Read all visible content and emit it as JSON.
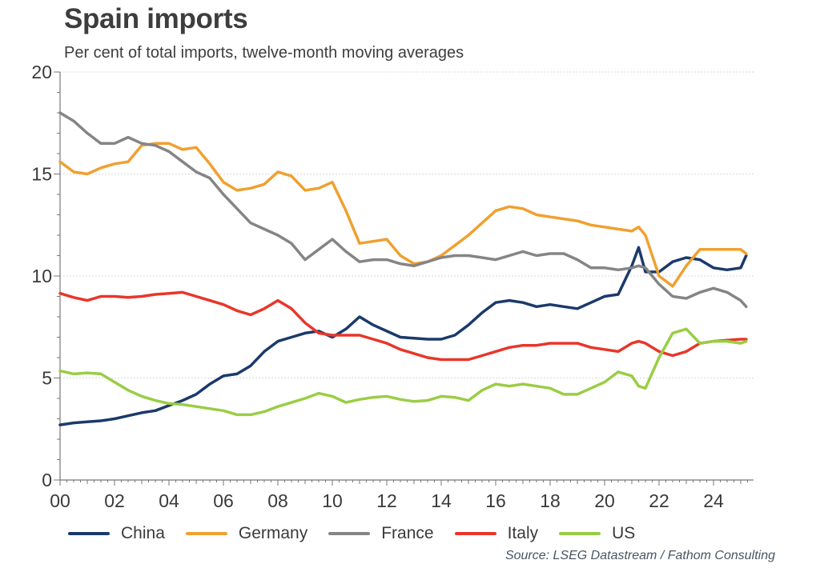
{
  "chart_data": {
    "type": "line",
    "title": "Spain imports",
    "subtitle": "Per cent of total imports, twelve-month moving averages",
    "xlabel": "",
    "ylabel": "",
    "ylim": [
      0,
      20
    ],
    "xlim": [
      2000,
      2025.5
    ],
    "yticks": [
      0,
      5,
      10,
      15,
      20
    ],
    "ytick_labels": [
      "0",
      "5",
      "10",
      "15",
      "20"
    ],
    "xticks": [
      2000,
      2002,
      2004,
      2006,
      2008,
      2010,
      2012,
      2014,
      2016,
      2018,
      2020,
      2022,
      2024
    ],
    "xtick_labels": [
      "00",
      "02",
      "04",
      "06",
      "08",
      "10",
      "12",
      "14",
      "16",
      "18",
      "20",
      "22",
      "24"
    ],
    "grid": "horizontal-dotted",
    "legend_position": "bottom",
    "source": "Source: LSEG Datastream / Fathom Consulting",
    "x": [
      2000.0,
      2000.5,
      2001.0,
      2001.5,
      2002.0,
      2002.5,
      2003.0,
      2003.5,
      2004.0,
      2004.5,
      2005.0,
      2005.5,
      2006.0,
      2006.5,
      2007.0,
      2007.5,
      2008.0,
      2008.5,
      2009.0,
      2009.5,
      2010.0,
      2010.5,
      2011.0,
      2011.5,
      2012.0,
      2012.5,
      2013.0,
      2013.5,
      2014.0,
      2014.5,
      2015.0,
      2015.5,
      2016.0,
      2016.5,
      2017.0,
      2017.5,
      2018.0,
      2018.5,
      2019.0,
      2019.5,
      2020.0,
      2020.5,
      2021.0,
      2021.25,
      2021.5,
      2022.0,
      2022.5,
      2023.0,
      2023.5,
      2024.0,
      2024.5,
      2025.0,
      2025.2
    ],
    "series": [
      {
        "name": "China",
        "color": "#1b3a6b",
        "values": [
          2.7,
          2.8,
          2.85,
          2.9,
          3.0,
          3.15,
          3.3,
          3.4,
          3.65,
          3.9,
          4.2,
          4.7,
          5.1,
          5.2,
          5.6,
          6.3,
          6.8,
          7.0,
          7.2,
          7.3,
          7.0,
          7.4,
          8.0,
          7.6,
          7.3,
          7.0,
          6.95,
          6.9,
          6.9,
          7.1,
          7.6,
          8.2,
          8.7,
          8.8,
          8.7,
          8.5,
          8.6,
          8.5,
          8.4,
          8.7,
          9.0,
          9.1,
          10.5,
          11.4,
          10.2,
          10.2,
          10.7,
          10.9,
          10.8,
          10.4,
          10.3,
          10.4,
          11.0
        ]
      },
      {
        "name": "Germany",
        "color": "#f0a030",
        "values": [
          15.6,
          15.1,
          15.0,
          15.3,
          15.5,
          15.6,
          16.4,
          16.5,
          16.5,
          16.2,
          16.3,
          15.5,
          14.6,
          14.2,
          14.3,
          14.5,
          15.1,
          14.9,
          14.2,
          14.3,
          14.6,
          13.2,
          11.6,
          11.7,
          11.8,
          11.0,
          10.6,
          10.7,
          11.0,
          11.5,
          12.0,
          12.6,
          13.2,
          13.4,
          13.3,
          13.0,
          12.9,
          12.8,
          12.7,
          12.5,
          12.4,
          12.3,
          12.2,
          12.4,
          12.0,
          10.0,
          9.5,
          10.5,
          11.3,
          11.3,
          11.3,
          11.3,
          11.1
        ]
      },
      {
        "name": "France",
        "color": "#858585",
        "values": [
          18.0,
          17.6,
          17.0,
          16.5,
          16.5,
          16.8,
          16.5,
          16.4,
          16.1,
          15.6,
          15.1,
          14.8,
          14.0,
          13.3,
          12.6,
          12.3,
          12.0,
          11.6,
          10.8,
          11.3,
          11.8,
          11.2,
          10.7,
          10.8,
          10.8,
          10.6,
          10.5,
          10.7,
          10.9,
          11.0,
          11.0,
          10.9,
          10.8,
          11.0,
          11.2,
          11.0,
          11.1,
          11.1,
          10.8,
          10.4,
          10.4,
          10.3,
          10.4,
          10.5,
          10.4,
          9.6,
          9.0,
          8.9,
          9.2,
          9.4,
          9.2,
          8.8,
          8.5
        ]
      },
      {
        "name": "Italy",
        "color": "#e8362a",
        "values": [
          9.15,
          8.95,
          8.8,
          9.0,
          9.0,
          8.95,
          9.0,
          9.1,
          9.15,
          9.2,
          9.0,
          8.8,
          8.6,
          8.3,
          8.1,
          8.4,
          8.8,
          8.4,
          7.7,
          7.2,
          7.1,
          7.1,
          7.1,
          6.9,
          6.7,
          6.4,
          6.2,
          6.0,
          5.9,
          5.9,
          5.9,
          6.1,
          6.3,
          6.5,
          6.6,
          6.6,
          6.7,
          6.7,
          6.7,
          6.5,
          6.4,
          6.3,
          6.7,
          6.8,
          6.7,
          6.3,
          6.1,
          6.3,
          6.7,
          6.8,
          6.85,
          6.9,
          6.9
        ]
      },
      {
        "name": "US",
        "color": "#9acd45",
        "values": [
          5.35,
          5.2,
          5.25,
          5.2,
          4.8,
          4.4,
          4.1,
          3.9,
          3.75,
          3.7,
          3.6,
          3.5,
          3.4,
          3.2,
          3.2,
          3.35,
          3.6,
          3.8,
          4.0,
          4.25,
          4.1,
          3.8,
          3.95,
          4.05,
          4.1,
          3.95,
          3.85,
          3.9,
          4.1,
          4.05,
          3.9,
          4.4,
          4.7,
          4.6,
          4.7,
          4.6,
          4.5,
          4.2,
          4.2,
          4.5,
          4.8,
          5.3,
          5.1,
          4.6,
          4.5,
          6.0,
          7.2,
          7.4,
          6.7,
          6.8,
          6.8,
          6.7,
          6.8
        ]
      }
    ]
  }
}
